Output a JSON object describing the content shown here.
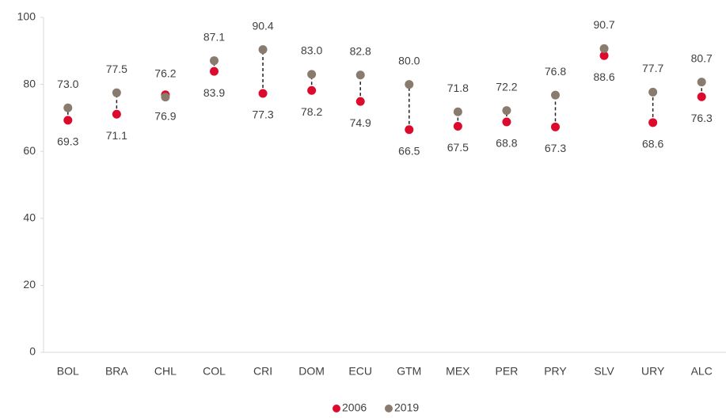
{
  "chart_data": {
    "type": "dot",
    "categories": [
      "BOL",
      "BRA",
      "CHL",
      "COL",
      "CRI",
      "DOM",
      "ECU",
      "GTM",
      "MEX",
      "PER",
      "PRY",
      "SLV",
      "URY",
      "ALC"
    ],
    "series": [
      {
        "name": "2006",
        "color": "#dc0a2d",
        "values": [
          69.3,
          71.1,
          76.9,
          83.9,
          77.3,
          78.2,
          74.9,
          66.5,
          67.5,
          68.8,
          67.3,
          88.6,
          68.6,
          76.3
        ],
        "value_labels": [
          "69.3",
          "71.1",
          "76.9",
          "83.9",
          "77.3",
          "78.2",
          "74.9",
          "66.5",
          "67.5",
          "68.8",
          "67.3",
          "88.6",
          "68.6",
          "76.3"
        ]
      },
      {
        "name": "2019",
        "color": "#8a7b6f",
        "values": [
          73.0,
          77.5,
          76.2,
          87.1,
          90.4,
          83.0,
          82.8,
          80.0,
          71.8,
          72.2,
          76.8,
          90.7,
          77.7,
          80.7
        ],
        "value_labels": [
          "73.0",
          "77.5",
          "76.2",
          "87.1",
          "90.4",
          "83.0",
          "82.8",
          "80.0",
          "71.8",
          "72.2",
          "76.8",
          "90.7",
          "77.7",
          "80.7"
        ]
      }
    ],
    "ylim": [
      0,
      100
    ],
    "yticks": [
      0,
      20,
      40,
      60,
      80,
      100
    ],
    "grid": false,
    "legend": "bottom"
  }
}
